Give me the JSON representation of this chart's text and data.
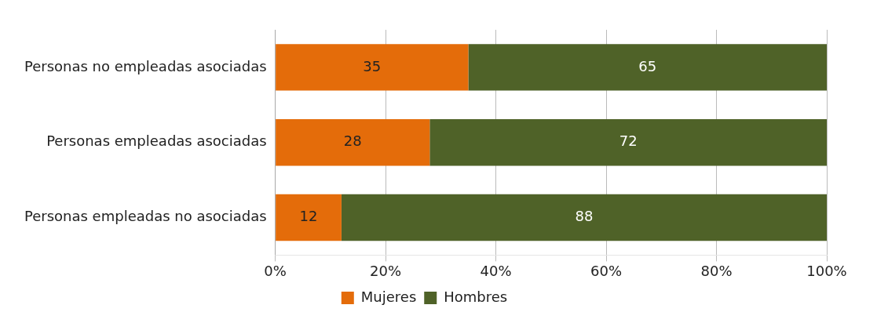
{
  "chart_data": {
    "type": "bar",
    "orientation": "horizontal",
    "stacked": true,
    "categories": [
      "Personas no empleadas asociadas",
      "Personas empleadas asociadas",
      "Personas empleadas no asociadas"
    ],
    "series": [
      {
        "name": "Mujeres",
        "color": "#e46c0a",
        "values": [
          35,
          28,
          12
        ]
      },
      {
        "name": "Hombres",
        "color": "#4f6228",
        "values": [
          65,
          72,
          88
        ]
      }
    ],
    "xlim": [
      0,
      100
    ],
    "xticks": [
      {
        "value": 0,
        "label": "0%"
      },
      {
        "value": 20,
        "label": "20%"
      },
      {
        "value": 40,
        "label": "40%"
      },
      {
        "value": 60,
        "label": "60%"
      },
      {
        "value": 80,
        "label": "80%"
      },
      {
        "value": 100,
        "label": "100%"
      }
    ],
    "grid": "x",
    "legend": "bottom",
    "data_labels": true
  }
}
